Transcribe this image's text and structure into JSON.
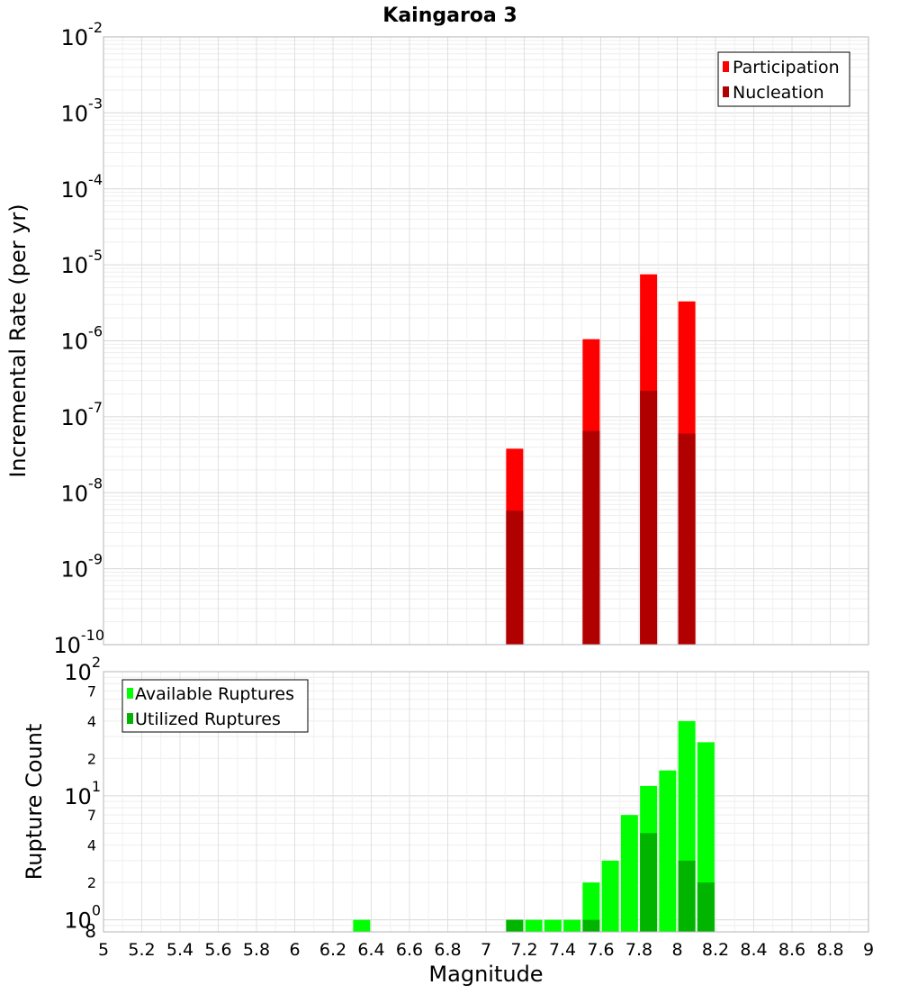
{
  "title": "Kaingaroa 3",
  "chart_data": [
    {
      "type": "bar",
      "title": "Kaingaroa 3",
      "ylabel": "Incremental Rate (per yr)",
      "yscale": "log",
      "ylim": [
        1e-10,
        0.01
      ],
      "xlim": [
        5,
        9
      ],
      "grid": true,
      "legend_position": "top-right",
      "y_ticks": [
        {
          "base": "10",
          "exp": "-10",
          "value": 1e-10
        },
        {
          "base": "10",
          "exp": "-9",
          "value": 1e-09
        },
        {
          "base": "10",
          "exp": "-8",
          "value": 1e-08
        },
        {
          "base": "10",
          "exp": "-7",
          "value": 1e-07
        },
        {
          "base": "10",
          "exp": "-6",
          "value": 1e-06
        },
        {
          "base": "10",
          "exp": "-5",
          "value": 1e-05
        },
        {
          "base": "10",
          "exp": "-4",
          "value": 0.0001
        },
        {
          "base": "10",
          "exp": "-3",
          "value": 0.001
        },
        {
          "base": "10",
          "exp": "-2",
          "value": 0.01
        }
      ],
      "series": [
        {
          "name": "Participation",
          "color": "#ff0000",
          "points": [
            {
              "x": 7.15,
              "y": 3.8e-08
            },
            {
              "x": 7.55,
              "y": 1.05e-06
            },
            {
              "x": 7.85,
              "y": 7.5e-06
            },
            {
              "x": 8.05,
              "y": 3.3e-06
            }
          ]
        },
        {
          "name": "Nucleation",
          "color": "#b00000",
          "points": [
            {
              "x": 7.15,
              "y": 5.8e-09
            },
            {
              "x": 7.55,
              "y": 6.5e-08
            },
            {
              "x": 7.85,
              "y": 2.2e-07
            },
            {
              "x": 8.05,
              "y": 6e-08
            }
          ]
        }
      ]
    },
    {
      "type": "bar",
      "xlabel": "Magnitude",
      "ylabel": "Rupture Count",
      "yscale": "log",
      "ylim": [
        0.8,
        100
      ],
      "xlim": [
        5,
        9
      ],
      "grid": true,
      "legend_position": "top-left",
      "x_ticks": [
        "5",
        "5.2",
        "5.4",
        "5.6",
        "5.8",
        "6",
        "6.2",
        "6.4",
        "6.6",
        "6.8",
        "7",
        "7.2",
        "7.4",
        "7.6",
        "7.8",
        "8",
        "8.2",
        "8.4",
        "8.6",
        "8.8",
        "9"
      ],
      "y_major_ticks": [
        {
          "base": "10",
          "exp": "0",
          "value": 1
        },
        {
          "base": "10",
          "exp": "1",
          "value": 10
        },
        {
          "base": "10",
          "exp": "2",
          "value": 100
        }
      ],
      "y_minor_ticks": [
        {
          "label": "8",
          "value": 0.8
        },
        {
          "label": "2",
          "value": 2
        },
        {
          "label": "4",
          "value": 4
        },
        {
          "label": "7",
          "value": 7
        },
        {
          "label": "2",
          "value": 20
        },
        {
          "label": "4",
          "value": 40
        },
        {
          "label": "7",
          "value": 70
        }
      ],
      "series": [
        {
          "name": "Available Ruptures",
          "color": "#00ff00",
          "points": [
            {
              "x": 6.35,
              "y": 1
            },
            {
              "x": 7.15,
              "y": 1
            },
            {
              "x": 7.25,
              "y": 1
            },
            {
              "x": 7.35,
              "y": 1
            },
            {
              "x": 7.45,
              "y": 1
            },
            {
              "x": 7.55,
              "y": 2
            },
            {
              "x": 7.65,
              "y": 3
            },
            {
              "x": 7.75,
              "y": 7
            },
            {
              "x": 7.85,
              "y": 12
            },
            {
              "x": 7.95,
              "y": 16
            },
            {
              "x": 8.05,
              "y": 40
            },
            {
              "x": 8.15,
              "y": 27
            }
          ]
        },
        {
          "name": "Utilized Ruptures",
          "color": "#00b400",
          "points": [
            {
              "x": 7.15,
              "y": 1
            },
            {
              "x": 7.55,
              "y": 1
            },
            {
              "x": 7.85,
              "y": 5
            },
            {
              "x": 8.05,
              "y": 3
            },
            {
              "x": 8.15,
              "y": 2
            }
          ]
        }
      ]
    }
  ]
}
